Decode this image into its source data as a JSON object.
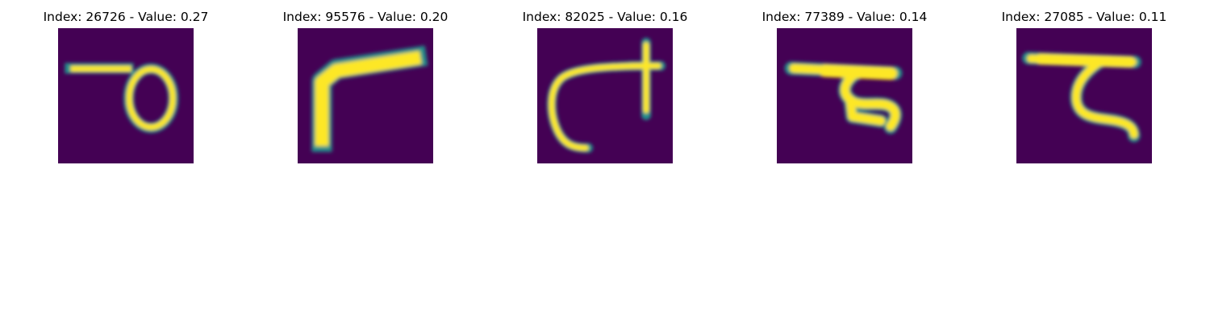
{
  "figure": {
    "colormap": "viridis",
    "background_color": "#440154",
    "stroke_color": "#fde725",
    "panels": [
      {
        "title": "Index: 26726 - Value: 0.27",
        "index": 26726,
        "value": 0.27
      },
      {
        "title": "Index: 95576 - Value: 0.20",
        "index": 95576,
        "value": 0.2
      },
      {
        "title": "Index: 82025 - Value: 0.16",
        "index": 82025,
        "value": 0.16
      },
      {
        "title": "Index: 77389 - Value: 0.14",
        "index": 77389,
        "value": 0.14
      },
      {
        "title": "Index: 27085 - Value: 0.11",
        "index": 27085,
        "value": 0.11
      }
    ]
  }
}
